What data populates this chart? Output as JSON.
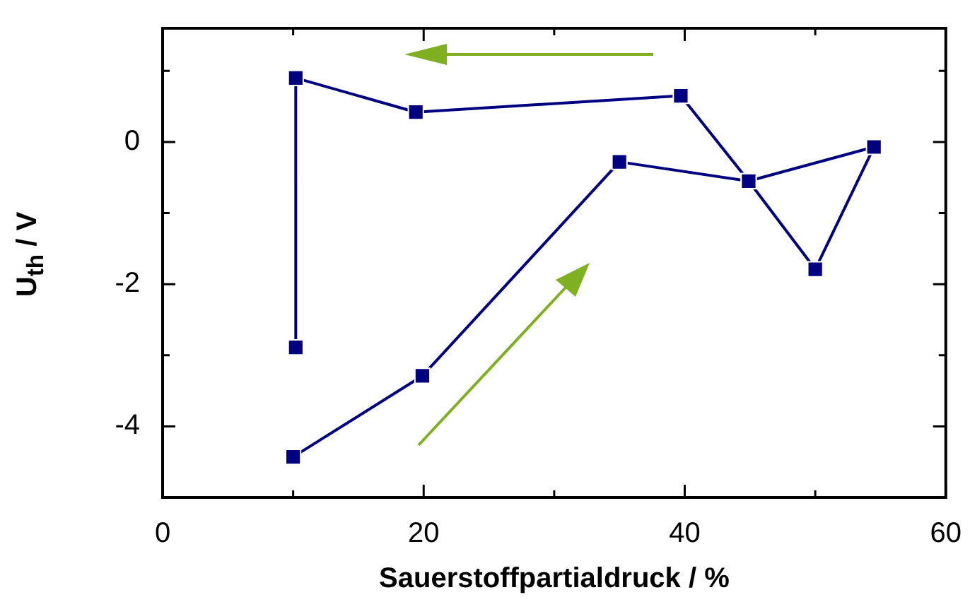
{
  "chart_data": {
    "type": "line",
    "xlabel": "Sauerstoffpartialdruck / %",
    "ylabel": "U$_{th}$ / V",
    "x": [
      10,
      19.9,
      35,
      44.9,
      50,
      54.5,
      44.9,
      39.7,
      19.4,
      10.2,
      10.2
    ],
    "series": [
      {
        "color": "#000080",
        "values": [
          -4.43,
          -3.29,
          -0.28,
          -0.55,
          -1.79,
          -0.07,
          -0.55,
          0.65,
          0.42,
          0.9,
          -2.89
        ]
      }
    ],
    "xlim": [
      0,
      60
    ],
    "xticks": [
      0,
      {
        "value": 10,
        "label": null
      },
      20,
      {
        "value": 30,
        "label": null
      },
      40,
      {
        "value": 50,
        "label": null
      },
      60
    ],
    "ylim": [
      -5,
      1.6
    ],
    "yticks": [
      {
        "value": 1,
        "label": null
      },
      0,
      {
        "value": -1,
        "label": null
      },
      -2,
      {
        "value": -3,
        "label": null
      },
      -4
    ],
    "grid": false,
    "legend": false,
    "marker": "square",
    "line_style": "solid"
  }
}
